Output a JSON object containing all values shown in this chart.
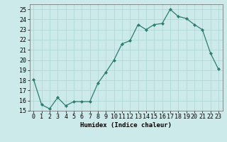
{
  "x": [
    0,
    1,
    2,
    3,
    4,
    5,
    6,
    7,
    8,
    9,
    10,
    11,
    12,
    13,
    14,
    15,
    16,
    17,
    18,
    19,
    20,
    21,
    22,
    23
  ],
  "y": [
    18.1,
    15.6,
    15.2,
    16.3,
    15.5,
    15.9,
    15.9,
    15.9,
    17.7,
    18.8,
    20.0,
    21.6,
    21.9,
    23.5,
    23.0,
    23.5,
    23.6,
    25.0,
    24.3,
    24.1,
    23.5,
    23.0,
    20.7,
    19.1
  ],
  "line_color": "#2d7d6e",
  "marker": "D",
  "marker_size": 2.2,
  "bg_color": "#cceaea",
  "grid_color": "#aad4d4",
  "xlabel": "Humidex (Indice chaleur)",
  "xlim": [
    -0.5,
    23.5
  ],
  "ylim": [
    15,
    25.5
  ],
  "yticks": [
    15,
    16,
    17,
    18,
    19,
    20,
    21,
    22,
    23,
    24,
    25
  ],
  "xticks": [
    0,
    1,
    2,
    3,
    4,
    5,
    6,
    7,
    8,
    9,
    10,
    11,
    12,
    13,
    14,
    15,
    16,
    17,
    18,
    19,
    20,
    21,
    22,
    23
  ],
  "xlabel_fontsize": 6.5,
  "tick_fontsize": 6.0
}
